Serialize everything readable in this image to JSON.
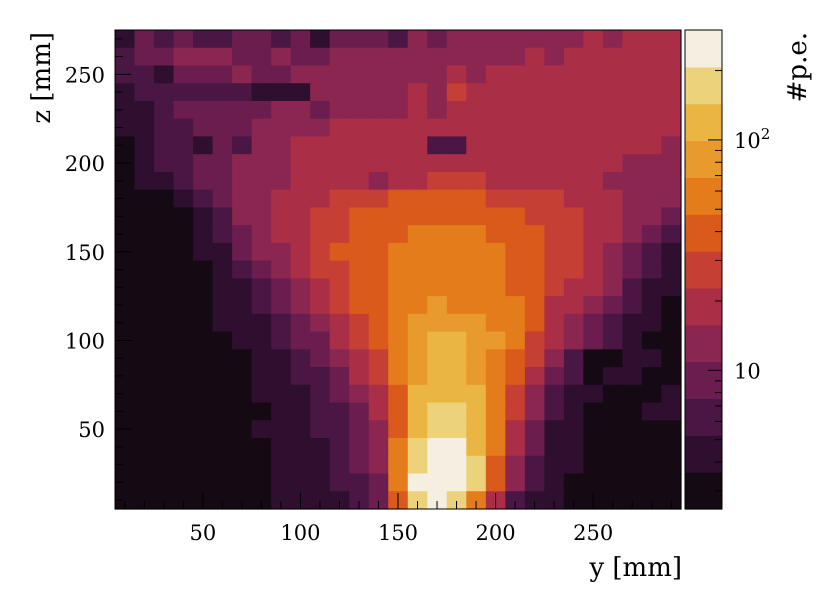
{
  "chart_data": {
    "type": "heatmap",
    "xlabel": "y [mm]",
    "ylabel": "z [mm]",
    "zlabel": "#p.e.",
    "xlim": [
      5,
      295
    ],
    "ylim": [
      5,
      275
    ],
    "x_ticks": [
      50,
      100,
      150,
      200,
      250
    ],
    "y_ticks": [
      50,
      100,
      150,
      200,
      250
    ],
    "z_scale": "log",
    "zlim": [
      2.5,
      300
    ],
    "z_tick_labels": [
      {
        "value": 10,
        "label": "10"
      },
      {
        "value": 100,
        "label": "10",
        "sup": "2"
      }
    ],
    "colormap": [
      "#150a14",
      "#2e0f2f",
      "#4a1643",
      "#6a1d4e",
      "#8a2650",
      "#ab2e47",
      "#c53f35",
      "#d95a1a",
      "#e47c1c",
      "#e89a2c",
      "#eab543",
      "#ecd27a",
      "#f4efe0"
    ],
    "grid": false,
    "legend": "none",
    "bins_x": 29,
    "bins_y": 27,
    "bin_size_mm": 10,
    "x_start": 5,
    "y_start": 5,
    "z_values_top_row_first": [
      [
        5,
        9,
        7,
        9,
        6,
        7,
        10,
        9,
        6,
        9,
        4,
        8,
        10,
        9,
        7,
        14,
        9,
        14,
        13,
        14,
        15,
        11,
        14,
        15,
        17,
        14,
        16,
        17,
        17
      ],
      [
        7,
        8,
        9,
        11,
        11,
        12,
        10,
        9,
        12,
        10,
        10,
        12,
        12,
        12,
        14,
        13,
        13,
        15,
        14,
        14,
        15,
        16,
        15,
        16,
        16,
        17,
        16,
        17,
        18
      ],
      [
        6,
        7,
        5,
        8,
        9,
        10,
        11,
        10,
        8,
        12,
        12,
        13,
        14,
        13,
        14,
        15,
        14,
        16,
        15,
        16,
        16,
        17,
        17,
        17,
        18,
        18,
        18,
        18,
        19
      ],
      [
        4,
        6,
        6,
        7,
        6,
        7,
        7,
        5,
        5,
        4,
        12,
        13,
        14,
        14,
        14,
        16,
        15,
        26,
        17,
        18,
        18,
        18,
        18,
        18,
        19,
        20,
        19,
        19,
        18
      ],
      [
        4,
        5,
        6,
        8,
        8,
        9,
        8,
        10,
        12,
        13,
        9,
        15,
        15,
        15,
        15,
        16,
        13,
        21,
        17,
        18,
        19,
        18,
        19,
        18,
        19,
        19,
        19,
        18,
        18
      ],
      [
        4,
        5,
        6,
        7,
        8,
        9,
        10,
        12,
        14,
        15,
        15,
        16,
        16,
        16,
        16,
        17,
        17,
        17,
        18,
        18,
        18,
        19,
        19,
        19,
        19,
        19,
        19,
        18,
        17
      ],
      [
        3,
        5,
        6,
        6,
        5,
        8,
        6,
        12,
        15,
        16,
        16,
        17,
        17,
        18,
        18,
        17,
        7,
        6,
        17,
        17,
        18,
        18,
        18,
        18,
        17,
        17,
        16,
        16,
        14
      ],
      [
        2,
        4,
        6,
        7,
        9,
        10,
        11,
        13,
        14,
        16,
        18,
        18,
        19,
        20,
        20,
        21,
        22,
        22,
        22,
        21,
        20,
        19,
        19,
        18,
        17,
        16,
        15,
        14,
        13
      ],
      [
        2,
        4,
        5,
        7,
        9,
        10,
        12,
        14,
        15,
        18,
        20,
        20,
        20,
        12,
        19,
        22,
        23,
        24,
        23,
        22,
        21,
        20,
        18,
        17,
        16,
        15,
        14,
        13,
        12
      ],
      [
        2,
        2,
        2,
        5,
        6,
        9,
        12,
        15,
        18,
        20,
        22,
        24,
        27,
        30,
        33,
        36,
        38,
        38,
        36,
        32,
        29,
        27,
        25,
        22,
        18,
        16,
        14,
        12,
        11
      ],
      [
        2,
        2,
        2,
        3,
        5,
        7,
        11,
        14,
        18,
        22,
        26,
        30,
        34,
        38,
        42,
        44,
        46,
        46,
        44,
        40,
        36,
        32,
        29,
        26,
        22,
        18,
        15,
        12,
        10
      ],
      [
        2,
        2,
        3,
        3,
        5,
        6,
        8,
        12,
        16,
        21,
        26,
        31,
        36,
        42,
        46,
        48,
        50,
        50,
        48,
        44,
        40,
        35,
        30,
        26,
        21,
        17,
        13,
        9,
        7
      ],
      [
        2,
        2,
        3,
        3,
        4,
        5,
        8,
        11,
        14,
        20,
        28,
        33,
        38,
        42,
        50,
        56,
        58,
        58,
        56,
        50,
        44,
        38,
        32,
        26,
        20,
        14,
        10,
        6,
        4
      ],
      [
        2,
        2,
        2,
        3,
        3,
        4,
        6,
        9,
        12,
        18,
        24,
        30,
        38,
        46,
        52,
        56,
        58,
        58,
        56,
        52,
        46,
        40,
        32,
        26,
        20,
        14,
        9,
        6,
        4
      ],
      [
        2,
        2,
        2,
        3,
        3,
        4,
        5,
        7,
        10,
        14,
        20,
        28,
        36,
        44,
        54,
        60,
        62,
        62,
        58,
        54,
        46,
        38,
        30,
        22,
        16,
        11,
        7,
        5,
        4
      ],
      [
        2,
        2,
        2,
        3,
        3,
        4,
        5,
        6,
        8,
        11,
        16,
        24,
        34,
        46,
        58,
        66,
        70,
        68,
        66,
        58,
        48,
        38,
        20,
        16,
        13,
        9,
        6,
        4,
        3
      ],
      [
        2,
        2,
        2,
        3,
        3,
        4,
        4,
        5,
        7,
        9,
        13,
        20,
        30,
        44,
        62,
        78,
        86,
        84,
        80,
        66,
        50,
        34,
        22,
        14,
        10,
        6,
        5,
        4,
        3
      ],
      [
        2,
        2,
        2,
        2,
        3,
        3,
        4,
        5,
        6,
        8,
        10,
        16,
        26,
        40,
        62,
        86,
        100,
        100,
        90,
        70,
        48,
        30,
        20,
        13,
        9,
        6,
        4,
        2,
        3
      ],
      [
        2,
        2,
        2,
        2,
        3,
        3,
        3,
        4,
        5,
        7,
        9,
        13,
        20,
        32,
        56,
        86,
        106,
        106,
        92,
        68,
        44,
        26,
        14,
        7,
        3,
        3,
        4,
        4,
        3
      ],
      [
        2,
        2,
        2,
        2,
        3,
        3,
        3,
        4,
        5,
        6,
        7,
        10,
        16,
        26,
        50,
        92,
        116,
        116,
        96,
        66,
        38,
        20,
        10,
        6,
        3,
        4,
        4,
        3,
        3
      ],
      [
        2,
        2,
        2,
        2,
        3,
        3,
        3,
        4,
        4,
        5,
        6,
        8,
        12,
        20,
        46,
        104,
        136,
        136,
        108,
        62,
        32,
        14,
        6,
        5,
        4,
        3,
        2,
        3,
        4
      ],
      [
        2,
        2,
        2,
        2,
        3,
        3,
        3,
        3,
        4,
        5,
        6,
        7,
        10,
        16,
        44,
        120,
        160,
        154,
        120,
        58,
        26,
        12,
        6,
        4,
        3,
        3,
        3,
        4,
        4
      ],
      [
        2,
        2,
        2,
        2,
        3,
        3,
        3,
        4,
        4,
        5,
        6,
        7,
        9,
        14,
        44,
        140,
        190,
        180,
        130,
        56,
        22,
        10,
        5,
        4,
        3,
        3,
        3,
        3,
        2
      ],
      [
        2,
        2,
        2,
        2,
        3,
        3,
        3,
        3,
        4,
        5,
        5,
        6,
        8,
        12,
        48,
        170,
        220,
        210,
        140,
        50,
        18,
        8,
        5,
        4,
        2,
        3,
        3,
        2,
        2
      ],
      [
        2,
        2,
        2,
        3,
        3,
        3,
        3,
        3,
        4,
        4,
        5,
        6,
        8,
        11,
        52,
        200,
        250,
        240,
        150,
        46,
        14,
        7,
        5,
        4,
        3,
        2,
        2,
        2,
        2
      ],
      [
        2,
        2,
        2,
        2,
        3,
        3,
        3,
        3,
        4,
        4,
        5,
        6,
        7,
        10,
        50,
        220,
        280,
        260,
        160,
        42,
        12,
        6,
        4,
        3,
        2,
        3,
        2,
        2,
        2
      ],
      [
        2,
        2,
        2,
        2,
        2,
        2,
        3,
        2,
        4,
        4,
        4,
        5,
        6,
        8,
        40,
        150,
        290,
        160,
        60,
        20,
        7,
        5,
        4,
        3,
        3,
        2,
        2,
        2,
        2
      ]
    ]
  }
}
